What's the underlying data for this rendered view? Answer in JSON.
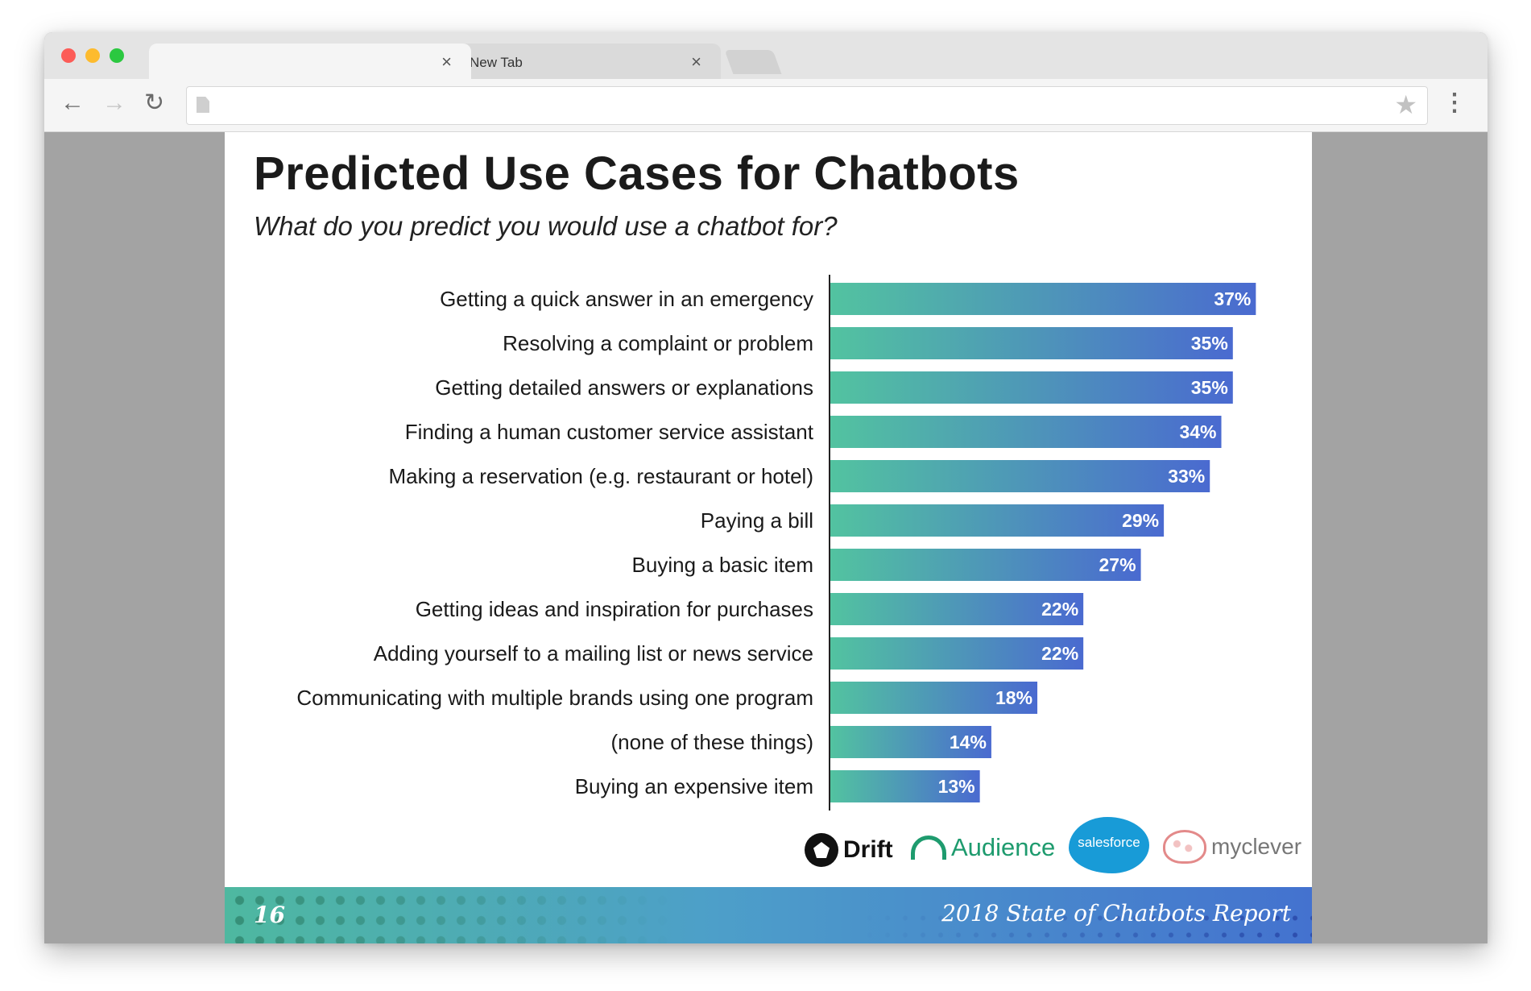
{
  "browser": {
    "tabs": [
      {
        "label": ""
      },
      {
        "label": "New Tab"
      }
    ],
    "tab_close_glyph": "×",
    "icons": [
      "back-arrow-icon",
      "forward-arrow-icon",
      "reload-icon",
      "page-icon",
      "bookmark-star-icon",
      "menu-icon"
    ]
  },
  "slide": {
    "title": "Predicted Use Cases for Chatbots",
    "subtitle": "What do you predict you would use a chatbot for?",
    "page_number": "16",
    "report_title": "2018 State of Chatbots Report",
    "logos": {
      "drift": "Drift",
      "audience": "Audience",
      "salesforce": "salesforce",
      "myclever": "myclever"
    }
  },
  "chart_data": {
    "type": "bar",
    "orientation": "horizontal",
    "categories": [
      "Getting a quick answer in an emergency",
      "Resolving a complaint or problem",
      "Getting detailed answers or explanations",
      "Finding a human customer service assistant",
      "Making a reservation (e.g. restaurant or hotel)",
      "Paying a bill",
      "Buying a basic item",
      "Getting ideas and inspiration for purchases",
      "Adding yourself to a mailing list or news service",
      "Communicating with multiple brands using one program",
      "(none of these things)",
      "Buying an expensive item"
    ],
    "values": [
      37,
      35,
      35,
      34,
      33,
      29,
      27,
      22,
      22,
      18,
      14,
      13
    ],
    "labels": [
      "37%",
      "35%",
      "35%",
      "34%",
      "33%",
      "29%",
      "27%",
      "22%",
      "22%",
      "18%",
      "14%",
      "13%"
    ],
    "unit": "%",
    "gradient": [
      "#52c3a0",
      "#4a6ad0"
    ],
    "label_color": "#ffffff"
  }
}
